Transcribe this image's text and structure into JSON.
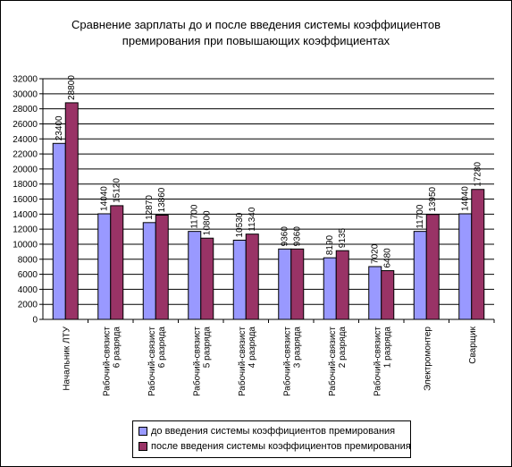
{
  "chart_data": {
    "type": "bar",
    "title": "Сравнение зарплаты до и после введения системы коэффициентов премирования при повышающих коэффициентах",
    "title_lines": [
      "Сравнение зарплаты до и после введения системы коэффициентов",
      "премирования при повышающих коэффициентах"
    ],
    "categories": [
      [
        "Начальник ЛТУ"
      ],
      [
        "Рабочий-связист",
        "6 разряда"
      ],
      [
        "Рабочий-связист",
        "6 разряда"
      ],
      [
        "Рабочий-связист",
        "5 разряда"
      ],
      [
        "Рабочий-связист",
        "4 разряда"
      ],
      [
        "Рабочий-связист",
        "3 разряда"
      ],
      [
        "Рабочий-связист",
        "2 разряда"
      ],
      [
        "Рабочий-связист",
        "1 разряда"
      ],
      [
        "Электромонтер"
      ],
      [
        "Сварщик"
      ]
    ],
    "series": [
      {
        "name": "до введения системы коэффициентов премирования",
        "color": "#9999FF",
        "values": [
          23400,
          14040,
          12870,
          11700,
          10530,
          9360,
          8190,
          7020,
          11700,
          14040
        ]
      },
      {
        "name": "после введения системы коэффициентов премирования",
        "color": "#993366",
        "values": [
          28800,
          15120,
          13860,
          10800,
          11340,
          9360,
          9135,
          6480,
          13950,
          17280
        ]
      }
    ],
    "data_labels": [
      [
        "23400",
        "14040",
        "12870",
        "11700",
        "10530",
        "9360",
        "8190",
        "7020",
        "11700",
        "14040"
      ],
      [
        "28800",
        "15120",
        "13860",
        "10800",
        "11340",
        "9360",
        "9135",
        "6480",
        "13950",
        "17280"
      ]
    ],
    "ylim": [
      0,
      32000
    ],
    "yticks": [
      "0",
      "2000",
      "4000",
      "6000",
      "8000",
      "10000",
      "12000",
      "14000",
      "16000",
      "18000",
      "20000",
      "22000",
      "24000",
      "26000",
      "28000",
      "30000",
      "32000"
    ],
    "grid": true,
    "legend_position": "bottom",
    "plot_background": "#ffffff"
  }
}
